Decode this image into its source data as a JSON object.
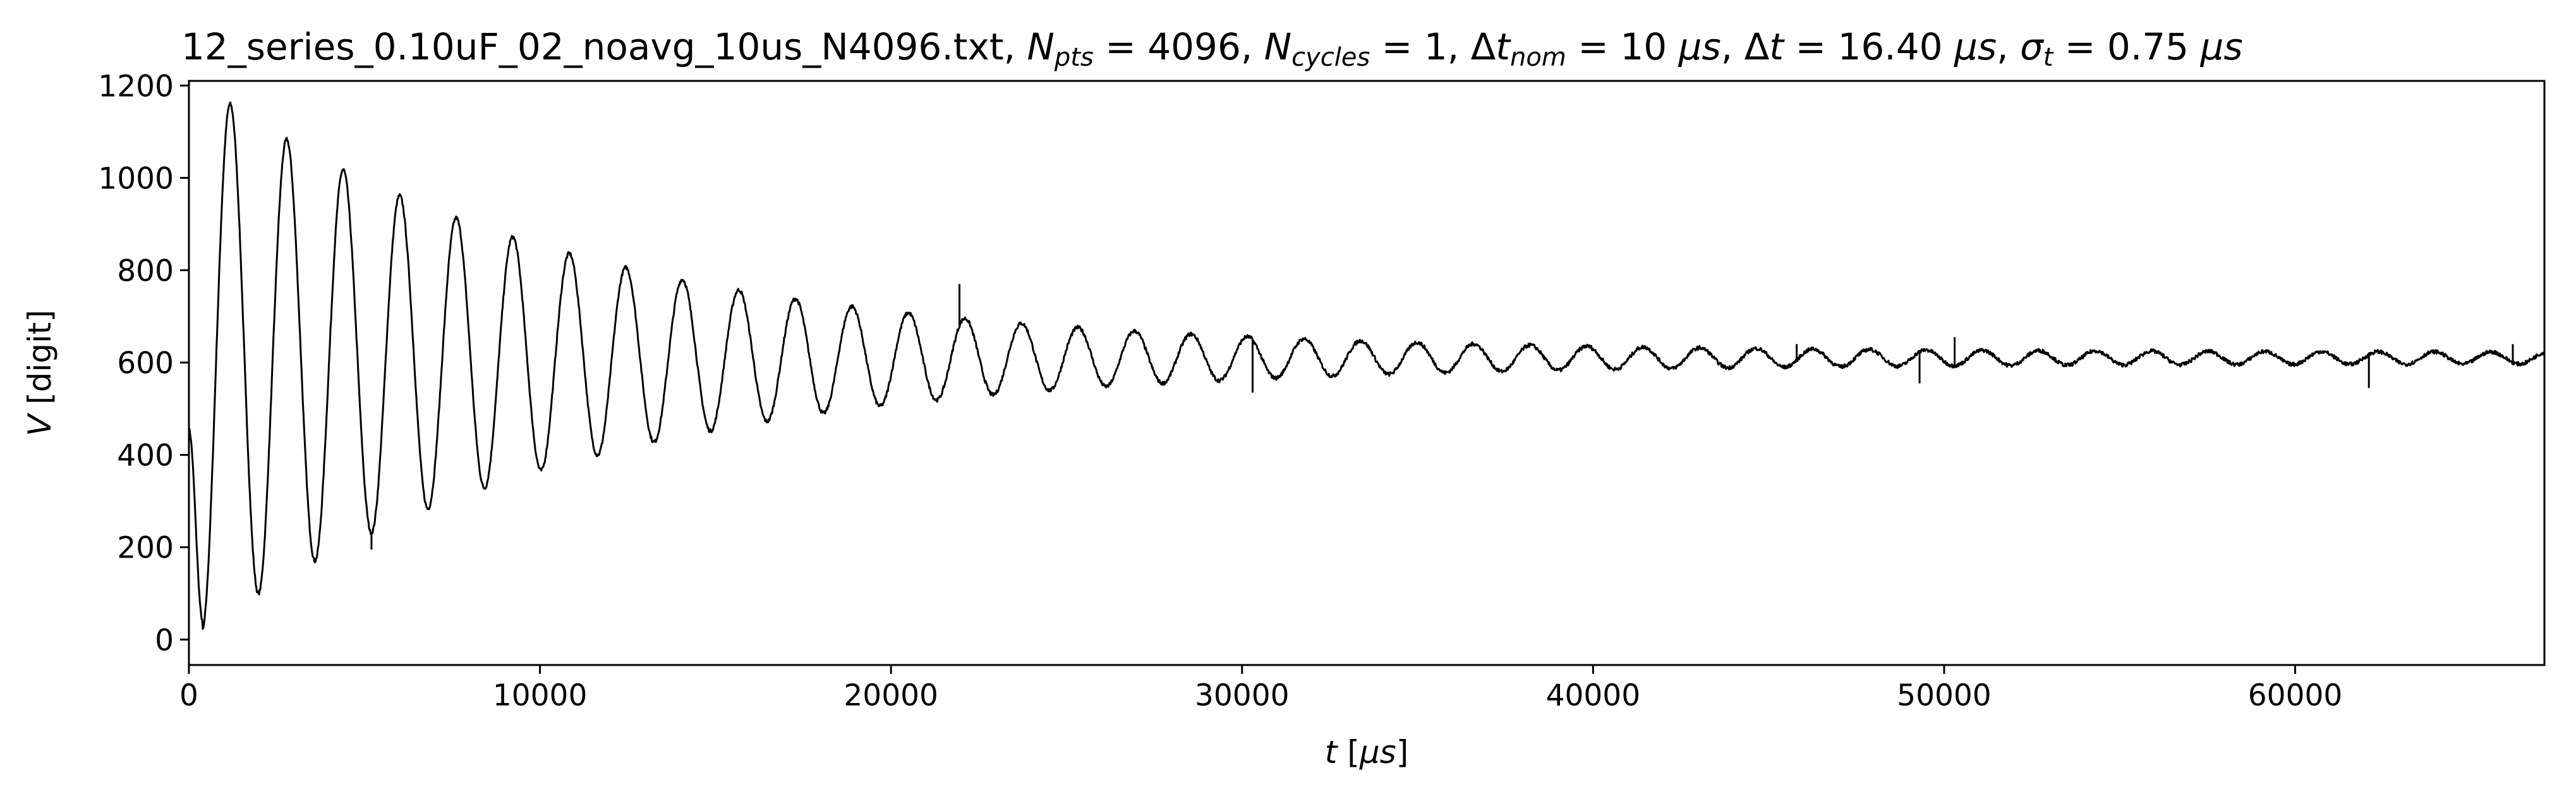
{
  "chart_data": {
    "type": "line",
    "title": {
      "file": "12_series_0.10uF_02_noavg_10us_N4096.txt",
      "n_pts": "4096",
      "n_cycles": "1",
      "dt_nom": "10",
      "dt": "16.40",
      "sigma_t": "0.75",
      "unit": "μs"
    },
    "xlabel": {
      "symbol": "t",
      "unit": "μs"
    },
    "ylabel": {
      "symbol": "V",
      "unit": "digit"
    },
    "xlim": [
      0,
      67100
    ],
    "ylim": [
      -55,
      1210
    ],
    "x_ticks": [
      0,
      10000,
      20000,
      30000,
      40000,
      50000,
      60000
    ],
    "y_ticks": [
      0,
      200,
      400,
      600,
      800,
      1000,
      1200
    ],
    "grid": false,
    "line_color": "#000000",
    "signal": {
      "n_points": 4096,
      "dt": 16.4,
      "offset": 610,
      "period": 1610,
      "decay_tau": 10500,
      "start_value": 455,
      "first_peak": {
        "x": 1180,
        "y": 1148
      },
      "first_trough": {
        "x": 390,
        "y": 42
      },
      "residual_amplitude": 12
    },
    "spikes": [
      {
        "x": 5200,
        "y": 195
      },
      {
        "x": 21950,
        "y": 770
      },
      {
        "x": 30300,
        "y": 535
      },
      {
        "x": 45800,
        "y": 640
      },
      {
        "x": 49300,
        "y": 555
      },
      {
        "x": 50300,
        "y": 655
      },
      {
        "x": 62100,
        "y": 545
      },
      {
        "x": 66200,
        "y": 640
      }
    ]
  }
}
